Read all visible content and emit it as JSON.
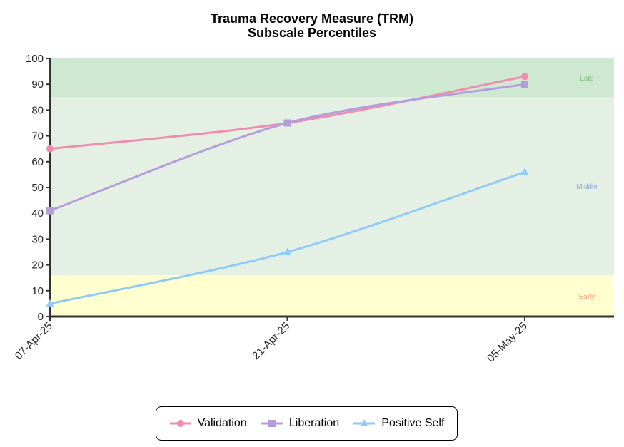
{
  "chart_data": {
    "type": "line",
    "title": "Trauma Recovery Measure (TRM)",
    "subtitle": "Subscale Percentiles",
    "xlabel": "",
    "ylabel": "",
    "categories": [
      "07-Apr-25",
      "21-Apr-25",
      "05-May-25"
    ],
    "ylim": [
      0,
      100
    ],
    "yticks": [
      0,
      10,
      20,
      30,
      40,
      50,
      60,
      70,
      80,
      90,
      100
    ],
    "grid": false,
    "legend_position": "bottom",
    "bands": [
      {
        "label": "Early",
        "from": 0,
        "to": 16,
        "color": "#ffffd0",
        "label_color": "#f4a582"
      },
      {
        "label": "Middle",
        "from": 16,
        "to": 85,
        "color": "#e5f0e5",
        "label_color": "#8fa6e0"
      },
      {
        "label": "Late",
        "from": 85,
        "to": 100,
        "color": "#cfe8d1",
        "label_color": "#7dbf7d"
      }
    ],
    "series": [
      {
        "name": "Validation",
        "values": [
          65,
          75,
          93
        ],
        "color": "#f08cae",
        "marker": "circle"
      },
      {
        "name": "Liberation",
        "values": [
          41,
          75,
          90
        ],
        "color": "#b39ddb",
        "marker": "square"
      },
      {
        "name": "Positive Self",
        "values": [
          5,
          25,
          56
        ],
        "color": "#90caf9",
        "marker": "triangle"
      }
    ]
  }
}
